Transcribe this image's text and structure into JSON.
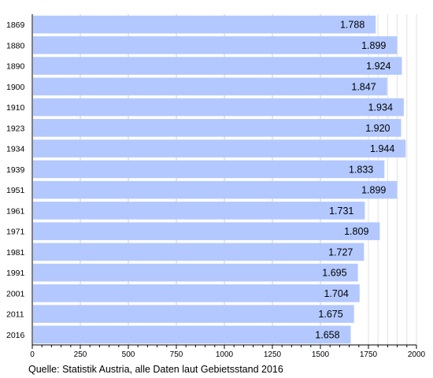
{
  "chart_data": {
    "type": "bar",
    "orientation": "horizontal",
    "categories": [
      "1869",
      "1880",
      "1890",
      "1900",
      "1910",
      "1923",
      "1934",
      "1939",
      "1951",
      "1961",
      "1971",
      "1981",
      "1991",
      "2001",
      "2011",
      "2016"
    ],
    "values": [
      1788,
      1899,
      1924,
      1847,
      1934,
      1920,
      1944,
      1833,
      1899,
      1731,
      1809,
      1727,
      1695,
      1704,
      1675,
      1658
    ],
    "value_labels": [
      "1.788",
      "1.899",
      "1.924",
      "1.847",
      "1.934",
      "1.920",
      "1.944",
      "1.833",
      "1.899",
      "1.731",
      "1.809",
      "1.727",
      "1.695",
      "1.704",
      "1.675",
      "1.658"
    ],
    "x_ticks": [
      0,
      250,
      500,
      750,
      1000,
      1250,
      1500,
      1750,
      2000
    ],
    "xlim": [
      0,
      2000
    ],
    "bar_color": "#b3c8ff",
    "grid": "vertical lines right of data",
    "source": "Quelle: Statistik Austria, alle Daten laut Gebietsstand 2016"
  }
}
